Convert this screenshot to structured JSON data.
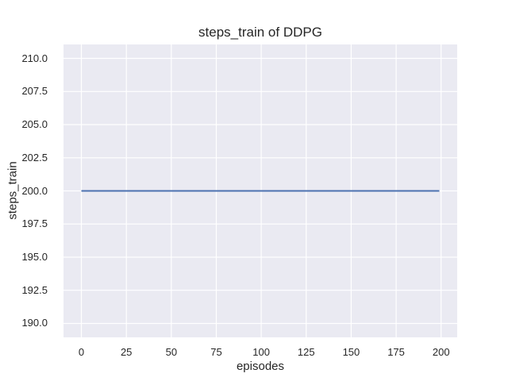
{
  "chart_data": {
    "type": "line",
    "title": "steps_train of DDPG",
    "xlabel": "episodes",
    "ylabel": "steps_train",
    "x_ticks": [
      0,
      25,
      50,
      75,
      100,
      125,
      150,
      175,
      200
    ],
    "x_tick_labels": [
      "0",
      "25",
      "50",
      "75",
      "100",
      "125",
      "150",
      "175",
      "200"
    ],
    "y_ticks": [
      190,
      192.5,
      195,
      197.5,
      200,
      202.5,
      205,
      207.5,
      210
    ],
    "y_tick_labels": [
      "190.0",
      "192.5",
      "195.0",
      "197.5",
      "200.0",
      "202.5",
      "205.0",
      "207.5",
      "210.0"
    ],
    "xlim": [
      -9.95,
      208.95
    ],
    "ylim": [
      188.95,
      211.05
    ],
    "grid": true,
    "legend": false,
    "series": [
      {
        "name": "steps_train",
        "color": "#4C72B0",
        "line_width": 2,
        "x": [
          0,
          199
        ],
        "y": [
          200,
          200
        ]
      }
    ],
    "styles": {
      "figure_bg": "#FFFFFF",
      "plot_bg": "#EAEAF2",
      "grid_color": "#FFFFFF",
      "text_color": "#262626"
    }
  }
}
